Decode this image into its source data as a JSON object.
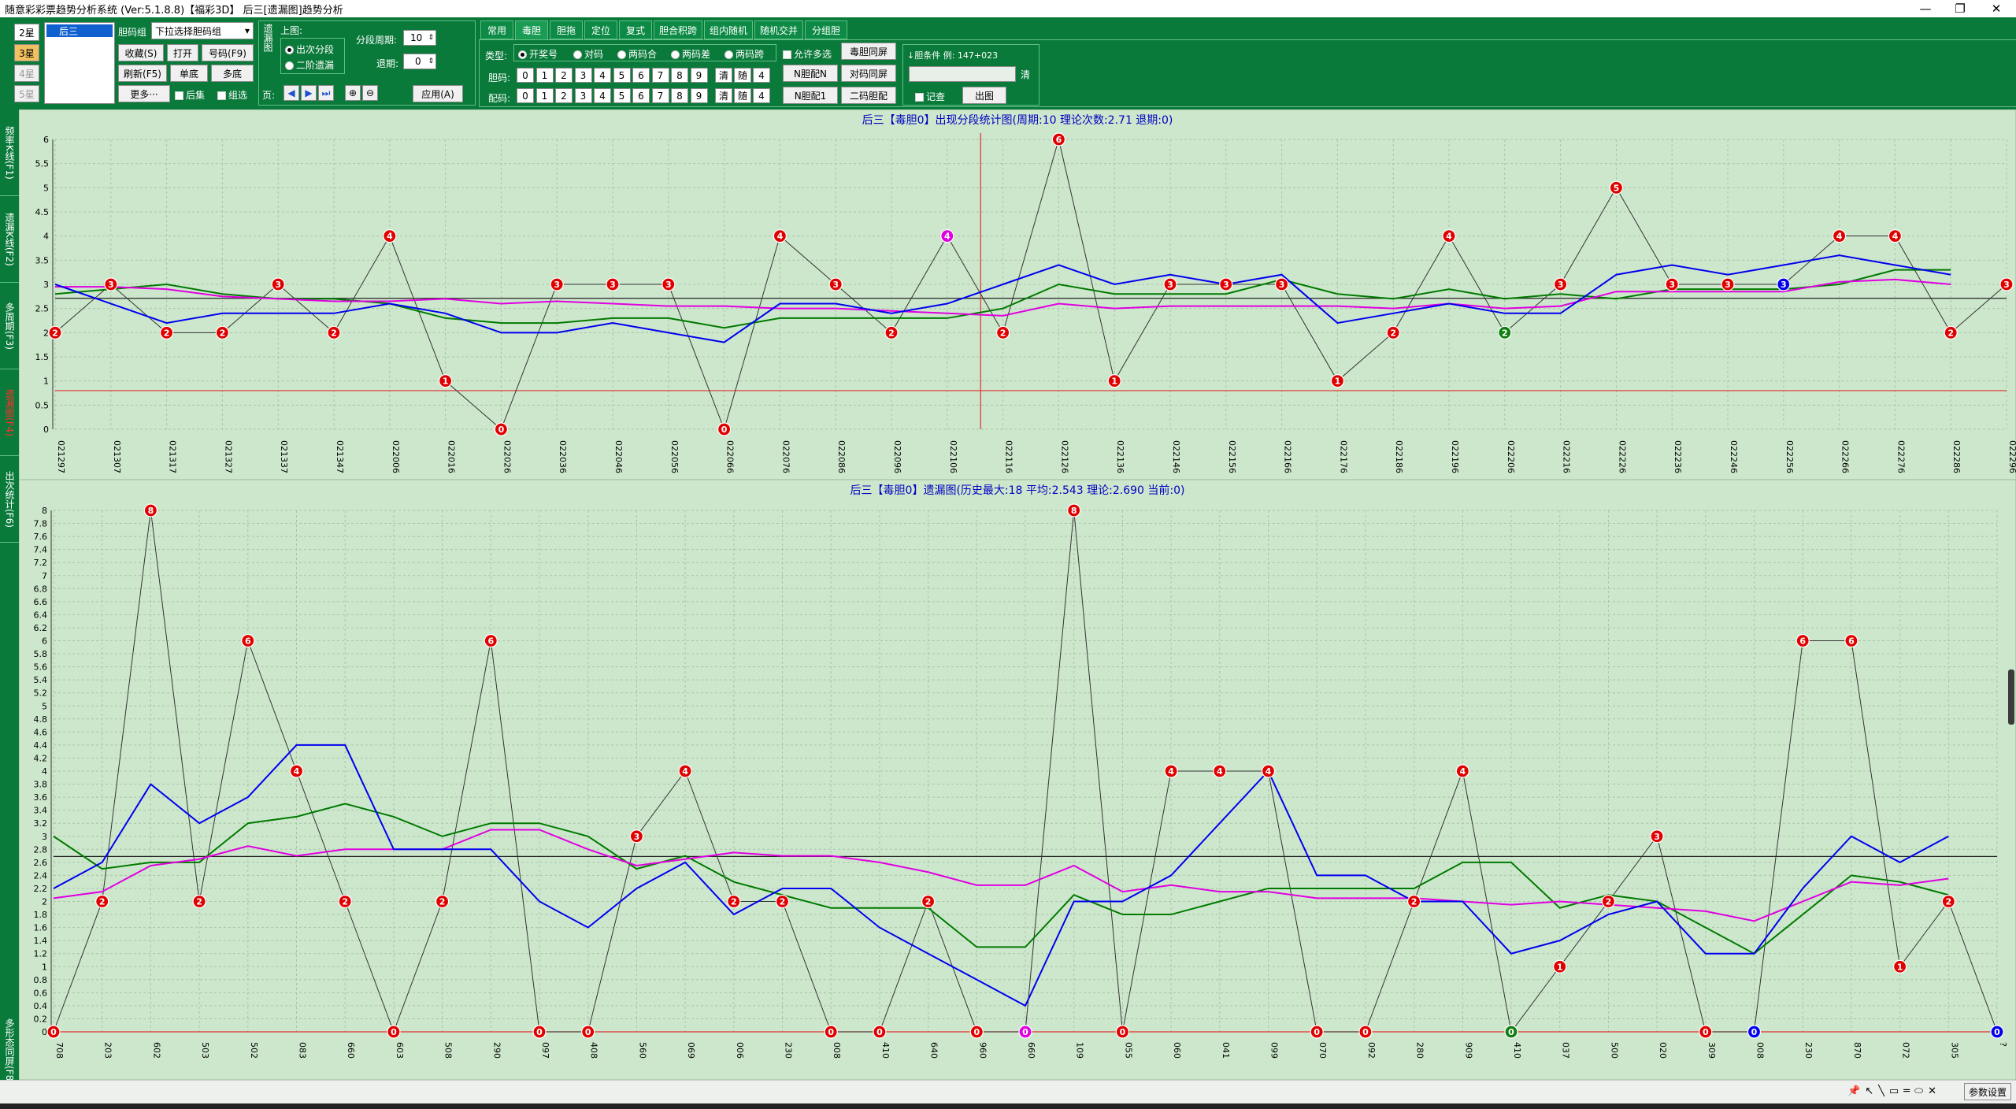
{
  "window": {
    "title": "随意彩彩票趋势分析系统 (Ver:5.1.8.8)【福彩3D】   后三[遗漏图]趋势分析",
    "controls": [
      "—",
      "❐",
      "✕"
    ]
  },
  "toolbar": {
    "star_buttons": [
      "2星",
      "3星",
      "4星",
      "5星"
    ],
    "list_item": "后三",
    "group_label": "胆码组",
    "group_select": "下拉选择胆码组",
    "buttons": {
      "collect": "收藏(S)",
      "open": "打开",
      "code": "号码(F9)",
      "refresh": "刷新(F5)",
      "single": "单底",
      "multi": "多底",
      "more": "更多···",
      "back": "后集",
      "combo": "组选",
      "apply": "应用(A)"
    },
    "vertical_label": "遗漏图",
    "top_label": "上图:",
    "radio_a": "出次分段",
    "radio_b": "二阶遗漏",
    "period_label": "分段周期:",
    "period_value": "10",
    "back_label": "退期:",
    "back_value": "0",
    "page_label": "页:"
  },
  "tabs": [
    "常用",
    "毒胆",
    "胆拖",
    "定位",
    "复式",
    "胆合积跨",
    "组内随机",
    "随机交并",
    "分组胆"
  ],
  "filter": {
    "type_label": "类型:",
    "types": [
      "开奖号",
      "对码",
      "两码合",
      "两码差",
      "两码跨"
    ],
    "allow_multi": "允许多选",
    "dan_label": "胆码:",
    "pei_label": "配码:",
    "digits": [
      "0",
      "1",
      "2",
      "3",
      "4",
      "5",
      "6",
      "7",
      "8",
      "9"
    ],
    "clear": "清",
    "random": "随",
    "count": "4",
    "btn_dup_dan": "毒胆同屏",
    "btn_n_dan": "N胆配N",
    "btn_pair_dup": "对码同屏",
    "btn_n_dan1": "N胆配1",
    "btn_two_code": "二码胆配",
    "cond_label": "↓胆条件 例: 147+023",
    "clear2": "清",
    "memo": "记查",
    "chart_btn": "出图"
  },
  "left_tabs": [
    "频率K线(F1)",
    "遗漏K线(F2)",
    "多周期(F3)",
    "遗漏图(F4)",
    "出次统计(F6)",
    "多形态同屏(F8)"
  ],
  "status": {
    "right_button": "参数设置",
    "icons": [
      "pin-icon",
      "cursor-icon",
      "line-icon",
      "rect-icon",
      "hline-icon",
      "ellipse-icon",
      "delete-icon"
    ]
  },
  "colors": {
    "green_panel": "#0a7a3a",
    "chart_bg": "#cde7cd",
    "red_marker": "#e00000",
    "blue_line": "#0000ee",
    "green_line": "#007a00",
    "magenta_line": "#e000e0"
  },
  "chart_data": [
    {
      "type": "line",
      "title": "后三【毒胆0】出现分段统计图(周期:10 理论次数:2.71 退期:0)",
      "ylim": [
        0,
        6
      ],
      "yticks": [
        "0",
        "0.5",
        "1",
        "1.5",
        "2",
        "2.5",
        "3",
        "3.5",
        "4",
        "4.5",
        "5",
        "5.5",
        "6"
      ],
      "categories": [
        "021297",
        "021307",
        "021317",
        "021327",
        "021337",
        "021347",
        "022006",
        "022016",
        "022026",
        "022036",
        "022046",
        "022056",
        "022066",
        "022076",
        "022086",
        "022096",
        "022106",
        "022116",
        "022126",
        "022136",
        "022146",
        "022156",
        "022166",
        "022176",
        "022186",
        "022196",
        "022206",
        "022216",
        "022226",
        "022236",
        "022246",
        "022256",
        "022266",
        "022276",
        "022286",
        "022296"
      ],
      "points": [
        2,
        3,
        2,
        2,
        3,
        2,
        4,
        1,
        0,
        3,
        3,
        3,
        0,
        4,
        3,
        2,
        4,
        2,
        6,
        1,
        3,
        3,
        3,
        1,
        2,
        4,
        2,
        3,
        5,
        3,
        3,
        3,
        4,
        4,
        2,
        3
      ],
      "point_colors": [
        "r",
        "r",
        "r",
        "r",
        "r",
        "r",
        "r",
        "r",
        "r",
        "r",
        "r",
        "r",
        "r",
        "r",
        "r",
        "r",
        "m",
        "r",
        "r",
        "r",
        "r",
        "r",
        "r",
        "r",
        "r",
        "r",
        "g",
        "r",
        "r",
        "r",
        "r",
        "b",
        "r",
        "r",
        "r",
        "r"
      ],
      "series_blue": [
        3,
        2.6,
        2.2,
        2.4,
        2.4,
        2.4,
        2.6,
        2.4,
        2,
        2,
        2.2,
        2,
        1.8,
        2.6,
        2.6,
        2.4,
        2.6,
        3,
        3.4,
        3,
        3.2,
        3,
        3.2,
        2.2,
        2.4,
        2.6,
        2.4,
        2.4,
        3.2,
        3.4,
        3.2,
        3.4,
        3.6,
        3.4,
        3.2
      ],
      "series_green": [
        2.8,
        2.9,
        3,
        2.8,
        2.7,
        2.7,
        2.6,
        2.3,
        2.2,
        2.2,
        2.3,
        2.3,
        2.1,
        2.3,
        2.3,
        2.3,
        2.3,
        2.5,
        3,
        2.8,
        2.8,
        2.8,
        3.1,
        2.8,
        2.7,
        2.9,
        2.7,
        2.8,
        2.7,
        2.9,
        2.9,
        2.9,
        3.0,
        3.3,
        3.3
      ],
      "series_magenta": [
        2.95,
        2.95,
        2.9,
        2.75,
        2.7,
        2.65,
        2.65,
        2.7,
        2.6,
        2.65,
        2.6,
        2.55,
        2.55,
        2.5,
        2.5,
        2.45,
        2.4,
        2.35,
        2.6,
        2.5,
        2.55,
        2.55,
        2.55,
        2.55,
        2.5,
        2.6,
        2.5,
        2.55,
        2.85,
        2.85,
        2.85,
        2.85,
        3.05,
        3.1,
        3.0
      ],
      "ref_black": 2.71,
      "ref_red": 0.8,
      "vline_index": 16.6
    },
    {
      "type": "line",
      "title": "后三【毒胆0】遗漏图(历史最大:18 平均:2.543 理论:2.690 当前:0)",
      "ylim": [
        0,
        8
      ],
      "yticks": [
        "0",
        "0.2",
        "0.4",
        "0.6",
        "0.8",
        "1",
        "1.2",
        "1.4",
        "1.6",
        "1.8",
        "2",
        "2.2",
        "2.4",
        "2.6",
        "2.8",
        "3",
        "3.2",
        "3.4",
        "3.6",
        "3.8",
        "4",
        "4.2",
        "4.4",
        "4.6",
        "4.8",
        "5",
        "5.2",
        "5.4",
        "5.6",
        "5.8",
        "6",
        "6.2",
        "6.4",
        "6.6",
        "6.8",
        "7",
        "7.2",
        "7.4",
        "7.6",
        "7.8",
        "8"
      ],
      "categories": [
        "708",
        "203",
        "602",
        "503",
        "502",
        "083",
        "660",
        "603",
        "508",
        "290",
        "097",
        "408",
        "560",
        "069",
        "006",
        "230",
        "008",
        "410",
        "640",
        "960",
        "660",
        "109",
        "055",
        "060",
        "041",
        "099",
        "070",
        "092",
        "280",
        "909",
        "410",
        "037",
        "500",
        "020",
        "309",
        "008",
        "230",
        "870",
        "072",
        "305",
        "?"
      ],
      "points": [
        0,
        2,
        8,
        2,
        6,
        4,
        2,
        0,
        2,
        6,
        0,
        0,
        3,
        4,
        2,
        2,
        0,
        0,
        2,
        0,
        0,
        8,
        0,
        4,
        4,
        4,
        0,
        0,
        2,
        4,
        0,
        1,
        2,
        3,
        0,
        0,
        6,
        6,
        1,
        2,
        0
      ],
      "point_colors": [
        "r",
        "r",
        "r",
        "r",
        "r",
        "r",
        "r",
        "r",
        "r",
        "r",
        "r",
        "r",
        "r",
        "r",
        "r",
        "r",
        "r",
        "r",
        "r",
        "r",
        "m",
        "r",
        "r",
        "r",
        "r",
        "r",
        "r",
        "r",
        "r",
        "r",
        "g",
        "r",
        "r",
        "r",
        "r",
        "b",
        "r",
        "r",
        "r",
        "r",
        "b"
      ],
      "series_blue": [
        2.2,
        2.6,
        3.8,
        3.2,
        3.6,
        4.4,
        4.4,
        2.8,
        2.8,
        2.8,
        2,
        1.6,
        2.2,
        2.6,
        1.8,
        2.2,
        2.2,
        1.6,
        1.2,
        0.8,
        0.4,
        2,
        2,
        2.4,
        3.2,
        4,
        2.4,
        2.4,
        2,
        2,
        1.2,
        1.4,
        1.8,
        2,
        1.2,
        1.2,
        2.2,
        3,
        2.6,
        3
      ],
      "series_green": [
        3,
        2.5,
        2.6,
        2.6,
        3.2,
        3.3,
        3.5,
        3.3,
        3,
        3.2,
        3.2,
        3,
        2.5,
        2.7,
        2.3,
        2.1,
        1.9,
        1.9,
        1.9,
        1.3,
        1.3,
        2.1,
        1.8,
        1.8,
        2,
        2.2,
        2.2,
        2.2,
        2.2,
        2.6,
        2.6,
        1.9,
        2.1,
        2,
        1.6,
        1.2,
        1.8,
        2.4,
        2.3,
        2.1
      ],
      "series_magenta": [
        2.05,
        2.15,
        2.55,
        2.65,
        2.85,
        2.7,
        2.8,
        2.8,
        2.8,
        3.1,
        3.1,
        2.8,
        2.55,
        2.65,
        2.75,
        2.7,
        2.7,
        2.6,
        2.45,
        2.25,
        2.25,
        2.55,
        2.15,
        2.25,
        2.15,
        2.15,
        2.05,
        2.05,
        2.05,
        2.0,
        1.95,
        2.0,
        1.95,
        1.9,
        1.85,
        1.7,
        2.0,
        2.3,
        2.25,
        2.35
      ],
      "ref_black": 2.69,
      "ref_red": 0
    }
  ]
}
